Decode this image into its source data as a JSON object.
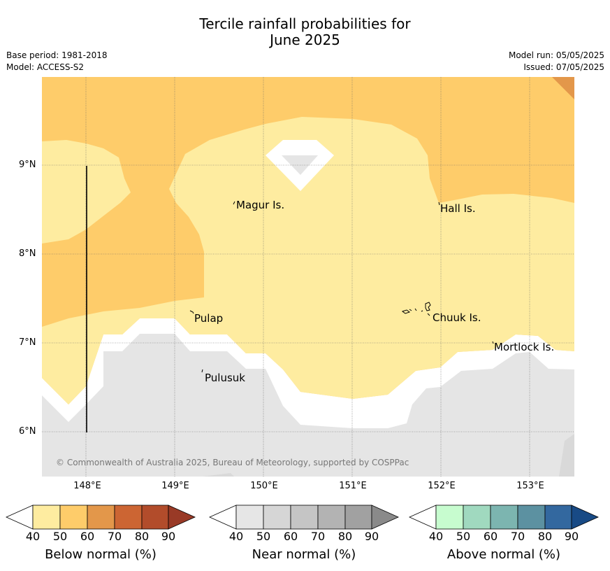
{
  "title": {
    "line1": "Tercile rainfall probabilities for",
    "line2": "June 2025"
  },
  "info": {
    "base_period": "Base period: 1981-2018",
    "model": "Model: ACCESS-S2",
    "model_run": "Model run: 05/05/2025",
    "issued": "Issued: 07/05/2025"
  },
  "map": {
    "latitude_labels": [
      "9°N",
      "8°N",
      "7°N",
      "6°N"
    ],
    "longitude_labels": [
      "148°E",
      "149°E",
      "150°E",
      "151°E",
      "152°E",
      "153°E"
    ],
    "places": [
      "Magur Is.",
      "Hall Is.",
      "Pulap",
      "Chuuk Is.",
      "Mortlock Is.",
      "Pulusuk"
    ],
    "copyright": "© Commonwealth of Australia 2025, Bureau of Meteorology, supported by COSPPac",
    "colors": {
      "below_40_50": "#feeca0",
      "below_50_60": "#fecc6a",
      "below_60_70": "#e3974a",
      "near_40_50": "#e5e5e5",
      "near_50_60": "#d9d9d9",
      "white": "#ffffff"
    }
  },
  "colorbars": [
    {
      "label": "Below normal (%)",
      "ticks": [
        "40",
        "50",
        "60",
        "70",
        "80",
        "90"
      ],
      "colors": [
        "#feeca0",
        "#fecc6a",
        "#e3974a",
        "#cc6533",
        "#b24c2b",
        "#993a26"
      ]
    },
    {
      "label": "Near normal (%)",
      "ticks": [
        "40",
        "50",
        "60",
        "70",
        "80",
        "90"
      ],
      "colors": [
        "#e6e6e6",
        "#d6d6d6",
        "#c5c5c5",
        "#b3b3b3",
        "#a1a1a1",
        "#8a8a8a"
      ]
    },
    {
      "label": "Above normal (%)",
      "ticks": [
        "40",
        "50",
        "60",
        "70",
        "80",
        "90"
      ],
      "colors": [
        "#c7fccf",
        "#a0d9bf",
        "#7cb5b0",
        "#5c91a1",
        "#33689f",
        "#184a85"
      ]
    }
  ]
}
